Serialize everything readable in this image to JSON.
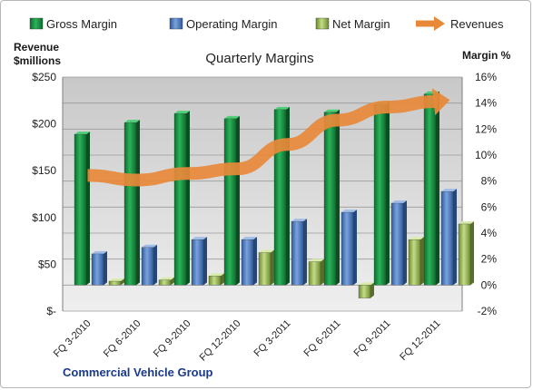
{
  "chart_data": {
    "type": "bar",
    "title": "Quarterly Margins",
    "ylabel_left": [
      "Revenue",
      "$millions"
    ],
    "ylabel_right": "Margin %",
    "company": "Commercial Vehicle Group",
    "categories": [
      "FQ 3-2010",
      "FQ 6-2010",
      "FQ 9-2010",
      "FQ 12-2010",
      "FQ 3-2011",
      "FQ 6-2011",
      "FQ 9-2011",
      "FQ 12-2011"
    ],
    "left_axis": {
      "ylim": [
        0,
        250
      ],
      "ticks": [
        0,
        50,
        100,
        150,
        200,
        250
      ],
      "tick_labels": [
        "$-",
        "$50",
        "$100",
        "$150",
        "$200",
        "$250"
      ]
    },
    "right_axis": {
      "ylim": [
        -2,
        16
      ],
      "ticks": [
        -2,
        0,
        2,
        4,
        6,
        8,
        10,
        12,
        14,
        16
      ],
      "tick_labels": [
        "-2%",
        "0%",
        "2%",
        "4%",
        "6%",
        "8%",
        "10%",
        "12%",
        "14%",
        "16%"
      ]
    },
    "grid": "horizontal",
    "legend_position": "top",
    "series": [
      {
        "name": "Gross Margin",
        "kind": "bar",
        "axis": "right",
        "color": "#1e9a4a",
        "values": [
          11.6,
          12.5,
          13.2,
          12.8,
          13.5,
          13.3,
          13.9,
          14.7
        ]
      },
      {
        "name": "Operating Margin",
        "kind": "bar",
        "axis": "right",
        "color": "#4f7fc6",
        "values": [
          2.4,
          2.9,
          3.5,
          3.5,
          4.9,
          5.6,
          6.3,
          7.2
        ]
      },
      {
        "name": "Net Margin",
        "kind": "bar",
        "axis": "right",
        "color": "#9bbb59",
        "values": [
          0.3,
          0.4,
          0.7,
          2.5,
          1.8,
          -1.0,
          3.5,
          4.7
        ]
      },
      {
        "name": "Revenues",
        "kind": "line",
        "axis": "left",
        "color": "#e8893a",
        "values": [
          145,
          140,
          147,
          152,
          178,
          204,
          218,
          224
        ]
      }
    ]
  }
}
